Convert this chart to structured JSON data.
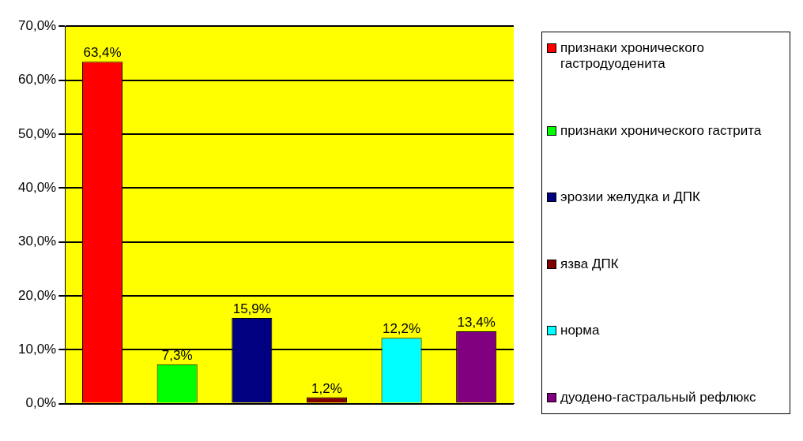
{
  "chart_data": {
    "type": "bar",
    "categories": [
      null,
      null,
      null,
      null,
      null,
      null
    ],
    "series": [
      {
        "name": "признаки хронического гастродуоденита",
        "color": "#ff0000",
        "values": [
          63.4,
          null,
          null,
          null,
          null,
          null
        ],
        "value_labels": [
          "63,4%",
          null,
          null,
          null,
          null,
          null
        ]
      },
      {
        "name": "признаки хронического гастрита",
        "color": "#00ff00",
        "values": [
          null,
          7.3,
          null,
          null,
          null,
          null
        ],
        "value_labels": [
          null,
          "7,3%",
          null,
          null,
          null,
          null
        ]
      },
      {
        "name": "эрозии желудка и ДПК",
        "color": "#000080",
        "values": [
          null,
          null,
          15.9,
          null,
          null,
          null
        ],
        "value_labels": [
          null,
          null,
          "15,9%",
          null,
          null,
          null
        ]
      },
      {
        "name": "язва ДПК",
        "color": "#800000",
        "values": [
          null,
          null,
          null,
          1.2,
          null,
          null
        ],
        "value_labels": [
          null,
          null,
          null,
          "1,2%",
          null,
          null
        ]
      },
      {
        "name": "норма",
        "color": "#00ffff",
        "values": [
          null,
          null,
          null,
          null,
          12.2,
          null
        ],
        "value_labels": [
          null,
          null,
          null,
          null,
          "12,2%",
          null
        ]
      },
      {
        "name": "дуодено-гастральный рефлюкс",
        "color": "#800080",
        "values": [
          null,
          null,
          null,
          null,
          null,
          13.4
        ],
        "value_labels": [
          null,
          null,
          null,
          null,
          null,
          "13,4%"
        ]
      }
    ],
    "ylim": [
      0,
      70
    ],
    "yticks": [
      {
        "value": 0,
        "label": "0,0%"
      },
      {
        "value": 10,
        "label": "10,0%"
      },
      {
        "value": 20,
        "label": "20,0%"
      },
      {
        "value": 30,
        "label": "30,0%"
      },
      {
        "value": 40,
        "label": "40,0%"
      },
      {
        "value": 50,
        "label": "50,0%"
      },
      {
        "value": 60,
        "label": "60,0%"
      },
      {
        "value": 70,
        "label": "70,0%"
      }
    ],
    "grid": "y",
    "legend": "right"
  }
}
